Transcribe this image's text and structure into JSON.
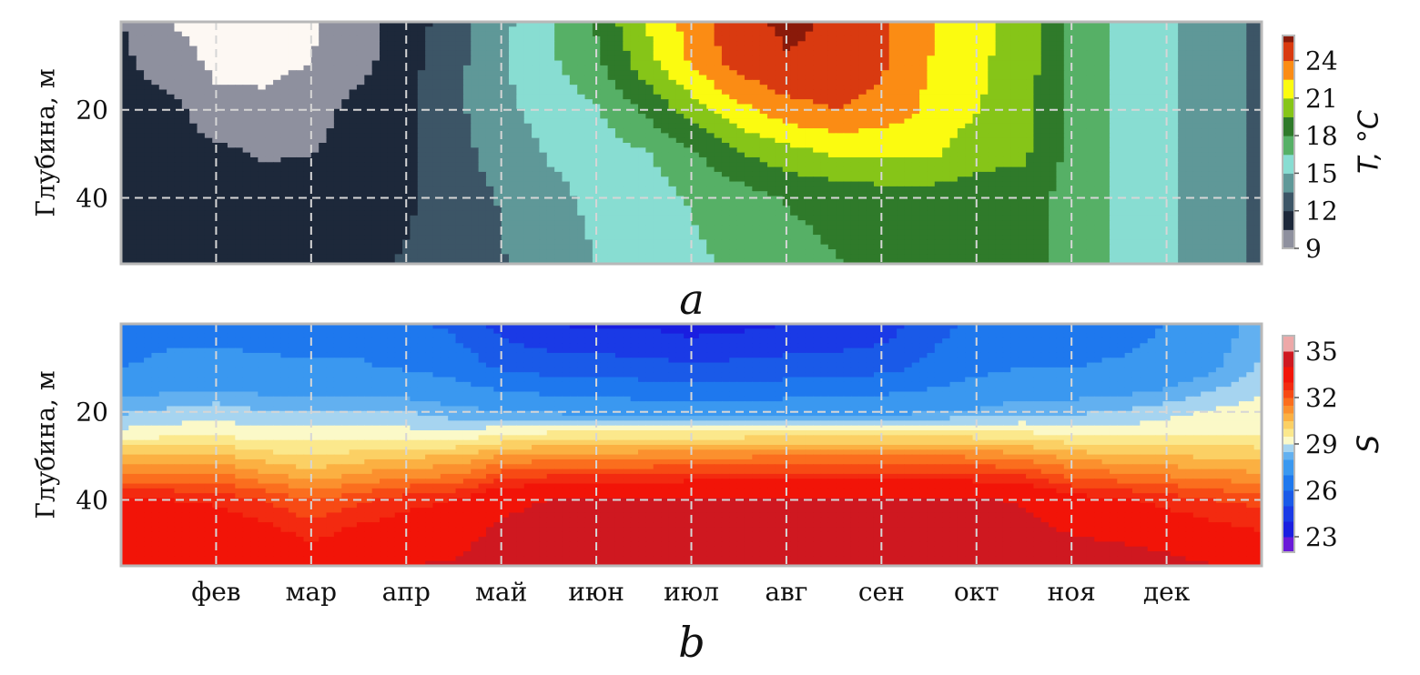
{
  "chart_data": [
    {
      "type": "heatmap",
      "panel_label": "a",
      "ylabel": "Глубина, м",
      "y_ticks": [
        20,
        40
      ],
      "ylim": [
        55,
        0
      ],
      "x_ticks": [
        "фев",
        "мар",
        "апр",
        "май",
        "июн",
        "июл",
        "авг",
        "сен",
        "окт",
        "ноя",
        "дек"
      ],
      "xlim_months": [
        1,
        13
      ],
      "grid": true,
      "colorbar": {
        "label": "T, °C",
        "ticks": [
          9,
          12,
          15,
          18,
          21,
          24
        ],
        "range": [
          9,
          26
        ],
        "levels": [
          9,
          10.5,
          12,
          13.5,
          15,
          16.5,
          18,
          19.5,
          21,
          22.5,
          24,
          25.5
        ],
        "colors": [
          "#fdf8f3",
          "#8e909e",
          "#1d283a",
          "#3c5566",
          "#5f9898",
          "#88ddd2",
          "#56b066",
          "#2f7a2a",
          "#86c518",
          "#fbfb10",
          "#fb8c14",
          "#d93a10",
          "#8a1a0a",
          "#4e0f08",
          "#140604"
        ]
      },
      "grid_data": {
        "months": [
          1.0,
          1.5,
          2.0,
          2.5,
          3.0,
          3.5,
          4.0,
          4.5,
          5.0,
          5.5,
          6.0,
          6.5,
          7.0,
          7.5,
          8.0,
          8.5,
          9.0,
          9.5,
          10.0,
          10.5,
          11.0,
          11.5,
          12.0,
          12.5,
          13.0
        ],
        "depths": [
          0,
          10,
          20,
          30,
          40,
          55
        ],
        "values": [
          [
            10.5,
            9,
            8.6,
            8.6,
            8.8,
            9.8,
            11.2,
            12.8,
            14.6,
            16.2,
            18.2,
            21,
            23.2,
            25.2,
            25.7,
            25.4,
            24.4,
            22.7,
            21.4,
            20.4,
            17.6,
            16.2,
            15.3,
            14.1,
            13.2
          ],
          [
            11,
            9.5,
            8.8,
            8.8,
            9,
            10,
            11.5,
            13,
            14.8,
            16.2,
            17.6,
            20.2,
            22.6,
            24.6,
            25.4,
            25.3,
            24.2,
            22.5,
            21.3,
            20.3,
            17.6,
            16.2,
            15.3,
            14.1,
            13.2
          ],
          [
            11.2,
            11.2,
            9.3,
            9.2,
            9.6,
            11.2,
            11.7,
            13.1,
            14.6,
            15.6,
            16.4,
            18.2,
            20.2,
            22,
            23.4,
            24,
            23.5,
            22.2,
            21.1,
            20,
            17.5,
            16.2,
            15.3,
            14.1,
            13.2
          ],
          [
            11.2,
            11.2,
            11,
            10.3,
            10.4,
            11.7,
            11.7,
            12.9,
            14.2,
            15.1,
            15.7,
            16.3,
            17.8,
            19.4,
            20.4,
            21.1,
            21.2,
            21.3,
            20.1,
            19.8,
            17.5,
            16.2,
            15.3,
            14.1,
            13.2
          ],
          [
            11.4,
            11.5,
            11.5,
            11.5,
            11.5,
            11.6,
            11.8,
            12.6,
            13.6,
            14.6,
            15.3,
            15.8,
            16.6,
            17.3,
            18.1,
            18.5,
            18.8,
            18.8,
            18.7,
            18.6,
            17.5,
            16.2,
            15.3,
            14.1,
            13.2
          ],
          [
            11.7,
            11.7,
            11.7,
            11.7,
            11.7,
            11.8,
            12.1,
            12.7,
            13.4,
            14.3,
            15,
            15.6,
            16.2,
            16.8,
            17.4,
            17.9,
            18.2,
            18.4,
            18.4,
            18.4,
            17.5,
            16.2,
            15.3,
            14.1,
            13.2
          ]
        ]
      }
    },
    {
      "type": "heatmap",
      "panel_label": "b",
      "ylabel": "Глубина, м",
      "y_ticks": [
        20,
        40
      ],
      "ylim": [
        55,
        0
      ],
      "x_ticks": [
        "фев",
        "мар",
        "апр",
        "май",
        "июн",
        "июл",
        "авг",
        "сен",
        "окт",
        "ноя",
        "дек"
      ],
      "xlim_months": [
        1,
        13
      ],
      "grid": true,
      "colorbar": {
        "label": "S",
        "ticks": [
          23,
          26,
          29,
          32,
          35
        ],
        "range": [
          22,
          36
        ],
        "levels": [
          23,
          24,
          25,
          26,
          27,
          28,
          28.5,
          29,
          29.5,
          30,
          30.5,
          31,
          31.5,
          32,
          32.5,
          33,
          34,
          35
        ],
        "colors": [
          "#6a1ad8",
          "#1a1ee0",
          "#1a3ae6",
          "#1a5ae8",
          "#1e78ee",
          "#3a98f0",
          "#62b0f0",
          "#a6d4f0",
          "#fbf9c8",
          "#fbe88c",
          "#fbd064",
          "#fbb042",
          "#fb902e",
          "#fb6e1e",
          "#f74a14",
          "#f32a10",
          "#f21408",
          "#cf1820",
          "#eda8a8"
        ]
      },
      "grid_data": {
        "months": [
          1.0,
          1.5,
          2.0,
          2.5,
          3.0,
          3.5,
          4.0,
          4.5,
          5.0,
          5.5,
          6.0,
          6.5,
          7.0,
          7.5,
          8.0,
          8.5,
          9.0,
          9.5,
          10.0,
          10.5,
          11.0,
          11.5,
          12.0,
          12.5,
          13.0
        ],
        "depths": [
          0,
          10,
          20,
          25,
          30,
          35,
          40,
          55
        ],
        "values": [
          [
            26.5,
            26.7,
            26.8,
            26.6,
            26.6,
            26.7,
            26.2,
            25.8,
            24.6,
            24,
            23.8,
            23.9,
            23.5,
            23.7,
            24,
            24.1,
            24.4,
            25.6,
            26.2,
            26.6,
            26.6,
            26.7,
            27,
            27.7,
            28.2
          ],
          [
            27,
            27.2,
            27.2,
            27.2,
            27.1,
            27.1,
            26.9,
            26.6,
            25.9,
            25.6,
            25.5,
            25.4,
            25.2,
            25.3,
            25.4,
            25.5,
            25.7,
            26.2,
            26.7,
            27,
            27,
            27.1,
            27.3,
            27.9,
            28.6
          ],
          [
            28.4,
            28.6,
            28.8,
            28.5,
            28.5,
            28.6,
            28.5,
            28.2,
            28.1,
            27.9,
            27.8,
            27.6,
            27.6,
            27.5,
            27.7,
            27.8,
            27.8,
            27.9,
            28.1,
            28.4,
            28.4,
            28.5,
            28.8,
            29.1,
            29.2
          ],
          [
            29.2,
            29.3,
            29.4,
            29.2,
            29.2,
            29.3,
            29.2,
            29.1,
            29.4,
            29.6,
            29.7,
            29.6,
            29.7,
            29.7,
            29.8,
            29.8,
            29.8,
            29.8,
            29.7,
            29.6,
            29.4,
            29.3,
            29.4,
            29.5,
            29.5
          ],
          [
            30.6,
            30.6,
            30.6,
            30.2,
            30,
            30.2,
            30.4,
            30.5,
            31,
            31.2,
            31.2,
            31.3,
            31.4,
            31.4,
            31.5,
            31.5,
            31.5,
            31.5,
            31.4,
            31.2,
            30.8,
            30.6,
            30.5,
            30.4,
            30.3
          ],
          [
            31.8,
            31.8,
            31.8,
            31.3,
            30.8,
            31.2,
            31.5,
            31.6,
            32.4,
            32.6,
            32.7,
            32.7,
            32.8,
            32.8,
            32.9,
            32.9,
            32.9,
            32.9,
            32.8,
            32.6,
            32,
            31.8,
            31.6,
            31.4,
            31.2
          ],
          [
            33,
            33,
            32.9,
            32.5,
            32,
            32.4,
            32.8,
            33,
            33.8,
            34,
            34.1,
            34.1,
            34.2,
            34.2,
            34.2,
            34.2,
            34.2,
            34.2,
            34.1,
            33.9,
            33.3,
            33.1,
            32.8,
            32.5,
            32.3
          ],
          [
            34,
            34,
            34,
            34,
            33.6,
            34,
            34,
            34.1,
            34.6,
            34.7,
            34.8,
            34.8,
            34.9,
            34.9,
            34.9,
            34.9,
            34.9,
            34.9,
            34.8,
            34.8,
            34.6,
            34.5,
            34.3,
            34,
            33.8
          ]
        ]
      }
    }
  ]
}
